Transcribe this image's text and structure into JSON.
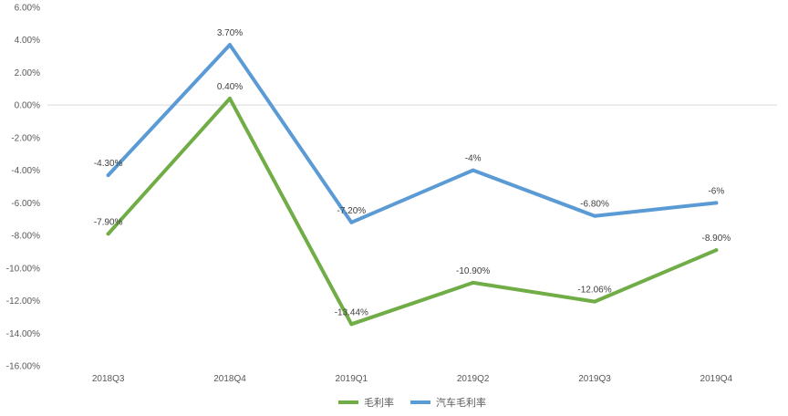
{
  "chart_data": {
    "type": "line",
    "title": "",
    "xlabel": "",
    "ylabel": "",
    "categories": [
      "2018Q3",
      "2018Q4",
      "2019Q1",
      "2019Q2",
      "2019Q3",
      "2019Q4"
    ],
    "ylim": [
      -16,
      6
    ],
    "yticks": [
      6,
      4,
      2,
      0,
      -2,
      -4,
      -6,
      -8,
      -10,
      -12,
      -14,
      -16
    ],
    "ytick_labels": [
      "6.00%",
      "4.00%",
      "2.00%",
      "0.00%",
      "-2.00%",
      "-4.00%",
      "-6.00%",
      "-8.00%",
      "-10.00%",
      "-12.00%",
      "-14.00%",
      "-16.00%"
    ],
    "grid": "zero-line only",
    "legend_position": "bottom",
    "series": [
      {
        "name": "毛利率",
        "color": "#70ad47",
        "values": [
          -7.9,
          0.4,
          -13.44,
          -10.9,
          -12.06,
          -8.9
        ],
        "labels": [
          "-7.90%",
          "0.40%",
          "-13.44%",
          "-10.90%",
          "-12.06%",
          "-8.90%"
        ]
      },
      {
        "name": "汽车毛利率",
        "color": "#5b9bd5",
        "values": [
          -4.3,
          3.7,
          -7.2,
          -4,
          -6.8,
          -6
        ],
        "labels": [
          "-4.30%",
          "3.70%",
          "-7.20%",
          "-4%",
          "-6.80%",
          "-6%"
        ]
      }
    ]
  }
}
